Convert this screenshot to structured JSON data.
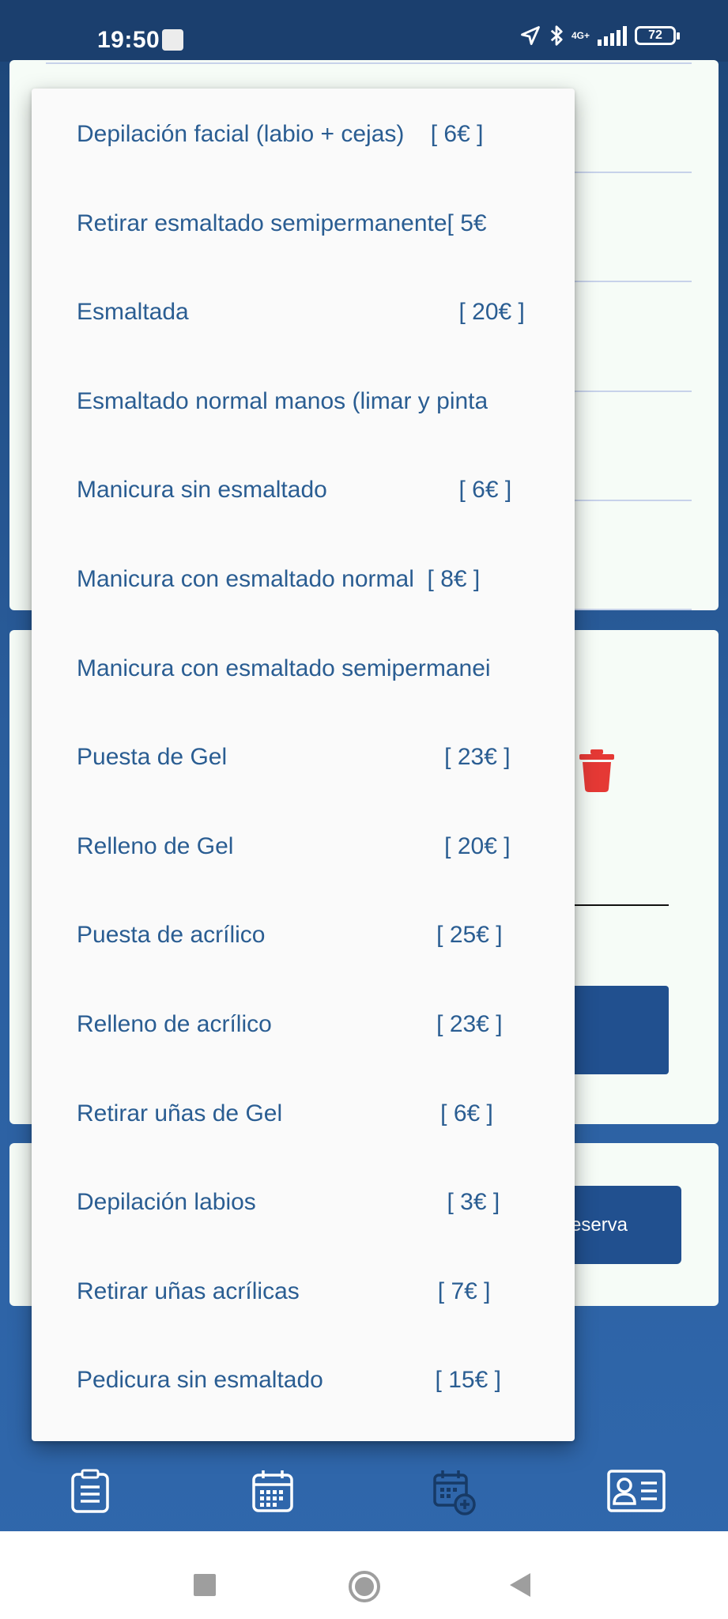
{
  "status_bar": {
    "time": "19:50",
    "network": "4G+",
    "battery": "72"
  },
  "background": {
    "reserve_button_label": "reserva"
  },
  "dropdown": {
    "items": [
      {
        "label": "Depilación facial (labio + cejas)    [ 6€ ]"
      },
      {
        "label": "Retirar esmaltado semipermanente[ 5€"
      },
      {
        "label": "Esmaltada                                         [ 20€ ]"
      },
      {
        "label": "Esmaltado normal manos (limar y pinta"
      },
      {
        "label": "Manicura sin esmaltado                    [ 6€ ]"
      },
      {
        "label": "Manicura con esmaltado normal  [ 8€ ]"
      },
      {
        "label": "Manicura con esmaltado semipermanei"
      },
      {
        "label": "Puesta de Gel                                 [ 23€ ]"
      },
      {
        "label": "Relleno de Gel                                [ 20€ ]"
      },
      {
        "label": "Puesta de acrílico                          [ 25€ ]"
      },
      {
        "label": "Relleno de acrílico                         [ 23€ ]"
      },
      {
        "label": "Retirar uñas de Gel                        [ 6€ ]"
      },
      {
        "label": "Depilación labios                             [ 3€ ]"
      },
      {
        "label": "Retirar uñas acrílicas                     [ 7€ ]"
      },
      {
        "label": "Pedicura sin esmaltado                 [ 15€ ]"
      }
    ]
  },
  "bottom_nav": {
    "items": [
      {
        "icon": "clipboard-icon"
      },
      {
        "icon": "calendar-icon"
      },
      {
        "icon": "calendar-add-icon"
      },
      {
        "icon": "id-card-icon"
      }
    ]
  },
  "colors": {
    "primary": "#21508f",
    "menu_text": "#2a5d92",
    "trash": "#e53935"
  }
}
